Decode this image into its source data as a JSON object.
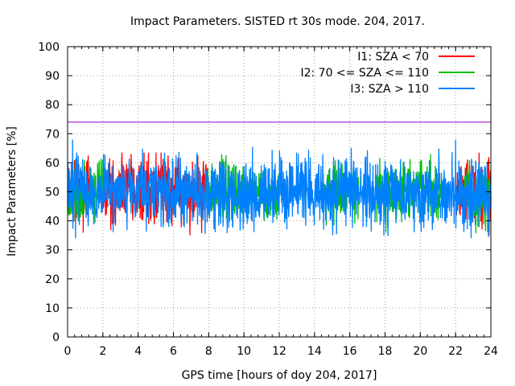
{
  "chart_data": {
    "type": "line",
    "title": "Impact Parameters. SISTED rt 30s mode. 204, 2017.",
    "xlabel": "GPS time [hours of doy 204, 2017]",
    "ylabel": "Impact Parameters [%]",
    "xlim": [
      0,
      24
    ],
    "ylim": [
      0,
      100
    ],
    "xticks": [
      0,
      2,
      4,
      6,
      8,
      10,
      12,
      14,
      16,
      18,
      20,
      22,
      24
    ],
    "yticks": [
      0,
      10,
      20,
      30,
      40,
      50,
      60,
      70,
      80,
      90,
      100
    ],
    "grid": true,
    "legend_position": "top-right",
    "reference_line": {
      "y": 74,
      "color": "#9400d3"
    },
    "series": [
      {
        "name": "I1: SZA < 70",
        "color": "#ff0000",
        "mean": 50,
        "spread": 6,
        "min": 35,
        "max": 63.5,
        "segments": [
          [
            0,
            1.3
          ],
          [
            2.0,
            7.9
          ],
          [
            22.0,
            24.0
          ]
        ]
      },
      {
        "name": "I2: 70 <= SZA <= 110",
        "color": "#00c000",
        "mean": 50,
        "spread": 5,
        "min": 34,
        "max": 63,
        "segments": [
          [
            0,
            2.0
          ],
          [
            7.9,
            12.0
          ],
          [
            14.5,
            16.5
          ],
          [
            17.5,
            21.2
          ],
          [
            22.5,
            24.0
          ]
        ]
      },
      {
        "name": "I3: SZA > 110",
        "color": "#0080ff",
        "mean": 50,
        "spread": 6,
        "min": 34,
        "max": 68,
        "segments": [
          [
            0,
            24.0
          ]
        ]
      }
    ]
  }
}
